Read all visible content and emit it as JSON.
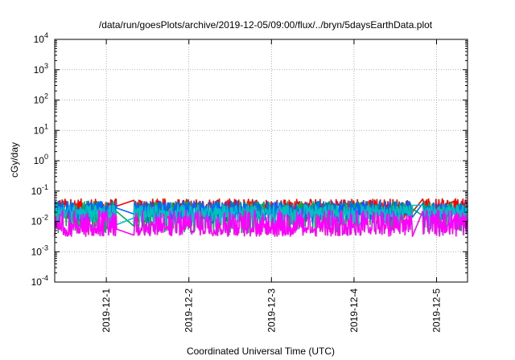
{
  "chart_data": {
    "type": "line",
    "title": "/data/run/goesPlots/archive/2019-12-05/09:00/flux/../bryn/5daysEarthData.plot",
    "xlabel": "Coordinated Universal Time (UTC)",
    "ylabel": "cGy/day",
    "yscale": "log",
    "ylim": [
      0.0001,
      10000
    ],
    "yticks": [
      {
        "value": 0.0001,
        "base": "10",
        "exp": "-4"
      },
      {
        "value": 0.001,
        "base": "10",
        "exp": "-3"
      },
      {
        "value": 0.01,
        "base": "10",
        "exp": "-2"
      },
      {
        "value": 0.1,
        "base": "10",
        "exp": "-1"
      },
      {
        "value": 1,
        "base": "10",
        "exp": "0"
      },
      {
        "value": 10,
        "base": "10",
        "exp": "1"
      },
      {
        "value": 100,
        "base": "10",
        "exp": "2"
      },
      {
        "value": 1000,
        "base": "10",
        "exp": "3"
      },
      {
        "value": 10000,
        "base": "10",
        "exp": "4"
      }
    ],
    "xlim": [
      "2019-11-30 09:00",
      "2019-12-05 09:00"
    ],
    "xticks": [
      "2019-12-1",
      "2019-12-2",
      "2019-12-3",
      "2019-12-4",
      "2019-12-5"
    ],
    "xtick_values": [
      "2019-12-01 00:00",
      "2019-12-02 00:00",
      "2019-12-03 00:00",
      "2019-12-04 00:00",
      "2019-12-05 00:00"
    ],
    "grid": true,
    "gaps": [
      [
        "2019-12-01 03:00",
        "2019-12-01 08:00"
      ],
      [
        "2019-12-04 17:00",
        "2019-12-04 20:00"
      ]
    ],
    "series": [
      {
        "color": "#ff0000",
        "base": 0.033,
        "low": 0.012,
        "noise": 0.45,
        "dips": 0.15
      },
      {
        "color": "#00b050",
        "base": 0.026,
        "low": 0.006,
        "noise": 0.5,
        "dips": 0.25
      },
      {
        "color": "#0066ff",
        "base": 0.028,
        "low": 0.012,
        "noise": 0.45,
        "dips": 0.2
      },
      {
        "color": "#00c0c0",
        "base": 0.022,
        "low": 0.01,
        "noise": 0.4,
        "dips": 0.2
      },
      {
        "color": "#ff00ff",
        "base": 0.012,
        "low": 0.0045,
        "noise": 0.6,
        "dips": 0.45
      }
    ]
  }
}
